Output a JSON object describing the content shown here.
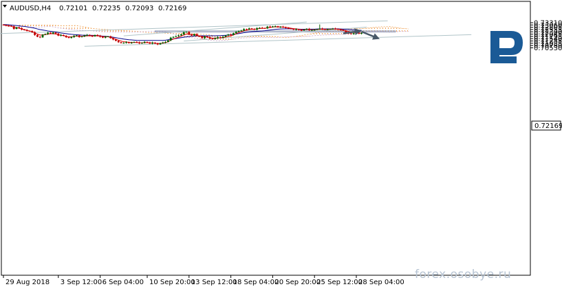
{
  "header": {
    "symbol": "AUDUSD,H4",
    "open": "0.72101",
    "high": "0.72235",
    "low": "0.72093",
    "close": "0.72169"
  },
  "watermark": "forex.osobye.ru",
  "current_price_label": "0.72169",
  "colors": {
    "bull": "#006400",
    "bear": "#c00000",
    "tenkan": "#e00000",
    "kijun": "#00008b",
    "cloud_up": "#f0a050",
    "cloud_down": "#c8a0c8",
    "channel": "#b0c4c8",
    "zone": "#b0b8d0",
    "arrow": "#485868",
    "logo": "#1a5a96"
  },
  "chart_data": {
    "type": "candlestick",
    "symbol": "AUDUSD",
    "timeframe": "H4",
    "ylim": [
      0.7053,
      0.7356
    ],
    "y_ticks": [
      "0.73310",
      "0.73060",
      "0.72805",
      "0.72555",
      "0.72300",
      "0.72045",
      "0.71795",
      "0.71540",
      "0.71285",
      "0.71035",
      "0.70780",
      "0.70530"
    ],
    "x_ticks": [
      {
        "label": "29 Aug 2018",
        "bar": 0
      },
      {
        "label": "3 Sep 12:00",
        "bar": 21
      },
      {
        "label": "6 Sep 04:00",
        "bar": 37
      },
      {
        "label": "10 Sep 20:00",
        "bar": 55
      },
      {
        "label": "13 Sep 12:00",
        "bar": 71
      },
      {
        "label": "18 Sep 04:00",
        "bar": 87
      },
      {
        "label": "20 Sep 20:00",
        "bar": 103
      },
      {
        "label": "25 Sep 12:00",
        "bar": 119
      },
      {
        "label": "28 Sep 04:00",
        "bar": 135
      }
    ],
    "closes": [
      0.7305,
      0.7298,
      0.7296,
      0.7292,
      0.7262,
      0.728,
      0.727,
      0.7255,
      0.725,
      0.724,
      0.7238,
      0.7225,
      0.7195,
      0.7175,
      0.7168,
      0.72,
      0.7205,
      0.722,
      0.721,
      0.7222,
      0.721,
      0.7188,
      0.7195,
      0.7185,
      0.717,
      0.7162,
      0.7172,
      0.7185,
      0.719,
      0.7172,
      0.7178,
      0.719,
      0.7195,
      0.7185,
      0.718,
      0.7195,
      0.7185,
      0.7175,
      0.7165,
      0.7175,
      0.718,
      0.716,
      0.7145,
      0.713,
      0.7115,
      0.7105,
      0.7108,
      0.7115,
      0.7105,
      0.711,
      0.7118,
      0.7112,
      0.7102,
      0.7108,
      0.7118,
      0.7112,
      0.71,
      0.711,
      0.71,
      0.709,
      0.7105,
      0.7112,
      0.7118,
      0.7135,
      0.7165,
      0.7175,
      0.7182,
      0.719,
      0.7202,
      0.7225,
      0.723,
      0.72,
      0.719,
      0.7205,
      0.7185,
      0.7175,
      0.716,
      0.7178,
      0.7168,
      0.7155,
      0.715,
      0.716,
      0.717,
      0.7165,
      0.7175,
      0.719,
      0.72,
      0.7195,
      0.7215,
      0.723,
      0.724,
      0.7245,
      0.726,
      0.7258,
      0.7268,
      0.7262,
      0.7255,
      0.727,
      0.7275,
      0.7272,
      0.7268,
      0.7288,
      0.7282,
      0.729,
      0.7292,
      0.728,
      0.7285,
      0.7282,
      0.7272,
      0.7268,
      0.726,
      0.7255,
      0.7258,
      0.725,
      0.7245,
      0.7255,
      0.7262,
      0.7248,
      0.725,
      0.7252,
      0.7258,
      0.7265,
      0.726,
      0.7255,
      0.7258,
      0.7262,
      0.7265,
      0.7262,
      0.7255,
      0.725,
      0.7242,
      0.7225,
      0.7212,
      0.7205,
      0.7215,
      0.7218,
      0.721,
      0.7217
    ],
    "tenkan_sen": [
      0.7305,
      0.73,
      0.7298,
      0.7292,
      0.728,
      0.7278,
      0.727,
      0.7262,
      0.7255,
      0.7245,
      0.724,
      0.7232,
      0.722,
      0.7205,
      0.7195,
      0.7195,
      0.7198,
      0.7205,
      0.7208,
      0.721,
      0.7205,
      0.7198,
      0.7192,
      0.7188,
      0.718,
      0.7175,
      0.7176,
      0.718,
      0.7182,
      0.718,
      0.718,
      0.7182,
      0.7185,
      0.7186,
      0.7185,
      0.7186,
      0.7185,
      0.7182,
      0.7178,
      0.7176,
      0.7175,
      0.7168,
      0.7158,
      0.7148,
      0.7138,
      0.7128,
      0.712,
      0.7118,
      0.7114,
      0.7112,
      0.7113,
      0.7112,
      0.7108,
      0.7108,
      0.711,
      0.711,
      0.7107,
      0.7107,
      0.7105,
      0.71,
      0.7102,
      0.7105,
      0.711,
      0.712,
      0.7138,
      0.715,
      0.716,
      0.717,
      0.718,
      0.7195,
      0.7205,
      0.7202,
      0.7198,
      0.7198,
      0.7192,
      0.7185,
      0.7178,
      0.7178,
      0.7172,
      0.7166,
      0.716,
      0.716,
      0.7162,
      0.7163,
      0.7166,
      0.7172,
      0.718,
      0.7185,
      0.7195,
      0.7208,
      0.722,
      0.723,
      0.7242,
      0.7248,
      0.7255,
      0.7258,
      0.7258,
      0.7262,
      0.7266,
      0.7268,
      0.7268,
      0.7275,
      0.7278,
      0.7282,
      0.7285,
      0.7284,
      0.7284,
      0.7283,
      0.728,
      0.7276,
      0.727,
      0.7265,
      0.7262,
      0.7257,
      0.7253,
      0.7254,
      0.7256,
      0.7254,
      0.7253,
      0.7253,
      0.7255,
      0.7258,
      0.7258,
      0.7258,
      0.7258,
      0.7259,
      0.726,
      0.7261,
      0.7259,
      0.7256,
      0.725,
      0.7242,
      0.7234,
      0.7226,
      0.7222,
      0.722,
      0.7216,
      0.7216
    ],
    "kijun_sen": [
      0.731,
      0.731,
      0.7308,
      0.7305,
      0.7302,
      0.73,
      0.7296,
      0.7292,
      0.729,
      0.7285,
      0.728,
      0.7276,
      0.727,
      0.7262,
      0.7255,
      0.725,
      0.7245,
      0.724,
      0.7236,
      0.7232,
      0.7228,
      0.7222,
      0.7218,
      0.7214,
      0.721,
      0.7205,
      0.7202,
      0.72,
      0.7198,
      0.7196,
      0.7194,
      0.7193,
      0.7192,
      0.7192,
      0.7191,
      0.719,
      0.7188,
      0.7185,
      0.7182,
      0.718,
      0.7178,
      0.7175,
      0.717,
      0.7165,
      0.716,
      0.7155,
      0.715,
      0.7146,
      0.7142,
      0.714,
      0.7138,
      0.7136,
      0.7135,
      0.7135,
      0.7135,
      0.7135,
      0.7135,
      0.7135,
      0.7135,
      0.7135,
      0.7135,
      0.7135,
      0.7138,
      0.7142,
      0.7148,
      0.7152,
      0.7156,
      0.716,
      0.7165,
      0.717,
      0.7175,
      0.7178,
      0.718,
      0.7182,
      0.7184,
      0.7185,
      0.7186,
      0.7186,
      0.7186,
      0.7186,
      0.7186,
      0.7186,
      0.7187,
      0.7188,
      0.719,
      0.7192,
      0.7195,
      0.7198,
      0.7202,
      0.7206,
      0.721,
      0.7215,
      0.722,
      0.7224,
      0.7228,
      0.7232,
      0.7234,
      0.7236,
      0.7238,
      0.724,
      0.7242,
      0.7246,
      0.725,
      0.7254,
      0.7258,
      0.726,
      0.7261,
      0.7262,
      0.7263,
      0.7263,
      0.7263,
      0.7262,
      0.7261,
      0.726,
      0.7259,
      0.7259,
      0.726,
      0.726,
      0.726,
      0.726,
      0.7261,
      0.7262,
      0.7262,
      0.7262,
      0.7262,
      0.7262,
      0.7263,
      0.7263,
      0.7262,
      0.7261,
      0.726,
      0.7258,
      0.7256,
      0.7254,
      0.7252,
      0.725,
      0.7248,
      0.7246
    ],
    "cloud": [
      {
        "bar": 6,
        "a": 0.7305,
        "b": 0.7295
      },
      {
        "bar": 12,
        "a": 0.7305,
        "b": 0.728
      },
      {
        "bar": 18,
        "a": 0.7305,
        "b": 0.729
      },
      {
        "bar": 22,
        "a": 0.7298,
        "b": 0.727
      },
      {
        "bar": 28,
        "a": 0.73,
        "b": 0.725
      },
      {
        "bar": 34,
        "a": 0.7268,
        "b": 0.724
      },
      {
        "bar": 38,
        "a": 0.7258,
        "b": 0.723
      },
      {
        "bar": 44,
        "a": 0.7248,
        "b": 0.7228
      },
      {
        "bar": 50,
        "a": 0.7238,
        "b": 0.7225
      },
      {
        "bar": 56,
        "a": 0.722,
        "b": 0.7235
      },
      {
        "bar": 62,
        "a": 0.7215,
        "b": 0.7232
      },
      {
        "bar": 66,
        "a": 0.721,
        "b": 0.72
      },
      {
        "bar": 70,
        "a": 0.7215,
        "b": 0.717
      },
      {
        "bar": 74,
        "a": 0.7205,
        "b": 0.716
      },
      {
        "bar": 78,
        "a": 0.72,
        "b": 0.714
      },
      {
        "bar": 82,
        "a": 0.718,
        "b": 0.713
      },
      {
        "bar": 86,
        "a": 0.7175,
        "b": 0.714
      },
      {
        "bar": 90,
        "a": 0.717,
        "b": 0.716
      },
      {
        "bar": 94,
        "a": 0.718,
        "b": 0.7165
      },
      {
        "bar": 98,
        "a": 0.7182,
        "b": 0.717
      },
      {
        "bar": 104,
        "a": 0.7178,
        "b": 0.7165
      },
      {
        "bar": 108,
        "a": 0.7165,
        "b": 0.7175
      },
      {
        "bar": 112,
        "a": 0.718,
        "b": 0.7175
      },
      {
        "bar": 116,
        "a": 0.72,
        "b": 0.718
      },
      {
        "bar": 120,
        "a": 0.722,
        "b": 0.719
      },
      {
        "bar": 126,
        "a": 0.724,
        "b": 0.72
      },
      {
        "bar": 132,
        "a": 0.726,
        "b": 0.7205
      },
      {
        "bar": 138,
        "a": 0.7268,
        "b": 0.723
      },
      {
        "bar": 144,
        "a": 0.7285,
        "b": 0.7235
      },
      {
        "bar": 148,
        "a": 0.7288,
        "b": 0.7225
      },
      {
        "bar": 152,
        "a": 0.727,
        "b": 0.7235
      },
      {
        "bar": 155,
        "a": 0.7262,
        "b": 0.7235
      }
    ],
    "resistance_zone": {
      "bar_from": 58,
      "bar_to": 150,
      "y_from": 0.7227,
      "y_to": 0.7241
    },
    "channel_lines": [
      [
        {
          "bar": -2,
          "y": 0.721
        },
        {
          "bar": 147,
          "y": 0.7352
        }
      ],
      [
        {
          "bar": 31,
          "y": 0.707
        },
        {
          "bar": 179,
          "y": 0.7199
        }
      ],
      [
        {
          "bar": 46,
          "y": 0.7185
        },
        {
          "bar": 116,
          "y": 0.7339
        }
      ],
      [
        {
          "bar": 69,
          "y": 0.7128
        },
        {
          "bar": 139,
          "y": 0.7282
        }
      ]
    ],
    "arrows": [
      {
        "from": {
          "bar": 130,
          "y": 0.7212
        },
        "to": {
          "bar": 136,
          "y": 0.7238
        }
      },
      {
        "from": {
          "bar": 137,
          "y": 0.7232
        },
        "to": {
          "bar": 143,
          "y": 0.7162
        }
      }
    ],
    "spike": {
      "bar": 121,
      "high": 0.7312,
      "low": 0.725
    }
  }
}
